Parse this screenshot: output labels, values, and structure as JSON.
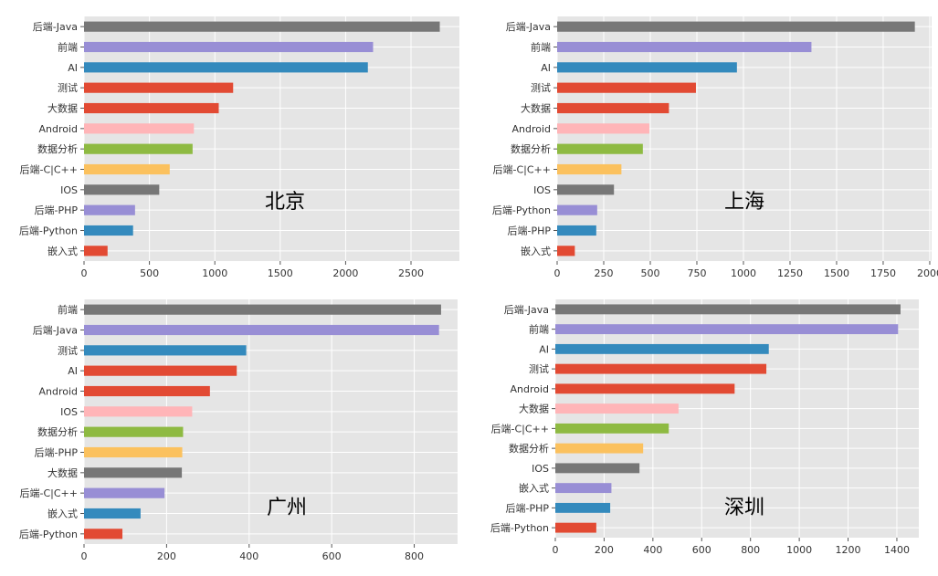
{
  "chart_data": [
    {
      "type": "bar",
      "orientation": "horizontal",
      "annotation": "北京",
      "categories": [
        "后端-Java",
        "前端",
        "AI",
        "测试",
        "大数据",
        "Android",
        "数据分析",
        "后端-C|C++",
        "IOS",
        "后端-PHP",
        "后端-Python",
        "嵌入式"
      ],
      "values": [
        2720,
        2210,
        2170,
        1140,
        1030,
        840,
        830,
        655,
        575,
        390,
        375,
        180
      ],
      "xticks": [
        0,
        500,
        1000,
        1500,
        2000,
        2500
      ],
      "xlim": [
        0,
        2870
      ],
      "grid": true
    },
    {
      "type": "bar",
      "orientation": "horizontal",
      "annotation": "上海",
      "categories": [
        "后端-Java",
        "前端",
        "AI",
        "测试",
        "大数据",
        "Android",
        "数据分析",
        "后端-C|C++",
        "IOS",
        "后端-Python",
        "后端-PHP",
        "嵌入式"
      ],
      "values": [
        1920,
        1365,
        965,
        745,
        600,
        495,
        460,
        345,
        305,
        215,
        210,
        95
      ],
      "xticks": [
        0,
        250,
        500,
        750,
        1000,
        1250,
        1500,
        1750,
        2000
      ],
      "xlim": [
        0,
        2010
      ],
      "grid": true
    },
    {
      "type": "bar",
      "orientation": "horizontal",
      "annotation": "广州",
      "categories": [
        "前端",
        "后端-Java",
        "测试",
        "AI",
        "Android",
        "IOS",
        "数据分析",
        "后端-PHP",
        "大数据",
        "后端-C|C++",
        "嵌入式",
        "后端-Python"
      ],
      "values": [
        865,
        860,
        393,
        370,
        305,
        262,
        240,
        238,
        237,
        195,
        137,
        93
      ],
      "xticks": [
        0,
        200,
        400,
        600,
        800
      ],
      "xlim": [
        0,
        905
      ],
      "grid": true
    },
    {
      "type": "bar",
      "orientation": "horizontal",
      "annotation": "深圳",
      "categories": [
        "后端-Java",
        "前端",
        "AI",
        "测试",
        "Android",
        "大数据",
        "后端-C|C++",
        "数据分析",
        "IOS",
        "嵌入式",
        "后端-PHP",
        "后端-Python"
      ],
      "values": [
        1415,
        1405,
        875,
        865,
        735,
        505,
        465,
        360,
        345,
        230,
        225,
        168
      ],
      "xticks": [
        0,
        200,
        400,
        600,
        800,
        1000,
        1200,
        1400
      ],
      "xlim": [
        0,
        1490
      ],
      "grid": true
    }
  ],
  "style": {
    "background": "#E5E5E5",
    "grid_color": "#FFFFFF",
    "bar_color_cycle": [
      "#777777",
      "#988ED5",
      "#348ABD",
      "#E24A33",
      "#E24A33",
      "#FFB5B8",
      "#8EBA42",
      "#FBC15E",
      "#777777",
      "#988ED5",
      "#348ABD",
      "#E24A33"
    ]
  }
}
